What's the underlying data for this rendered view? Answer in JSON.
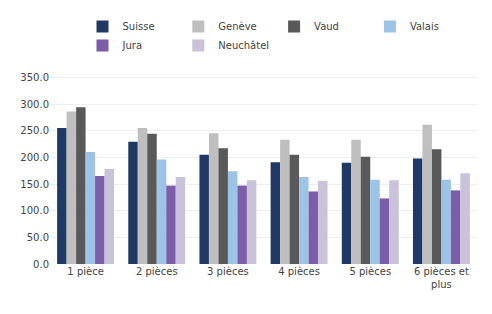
{
  "chart_data": {
    "type": "bar",
    "categories": [
      "1 pièce",
      "2 pièces",
      "3 pièces",
      "4 pièces",
      "5 pièces",
      "6 pièces et\nplus"
    ],
    "series": [
      {
        "name": "Suisse",
        "color": "#1F3864",
        "values": [
          255,
          229,
          205,
          191,
          190,
          198
        ]
      },
      {
        "name": "Genève",
        "color": "#BFBFBF",
        "values": [
          286,
          255,
          245,
          233,
          233,
          261
        ]
      },
      {
        "name": "Vaud",
        "color": "#595959",
        "values": [
          294,
          244,
          217,
          205,
          201,
          215
        ]
      },
      {
        "name": "Valais",
        "color": "#9DC3E6",
        "values": [
          210,
          196,
          174,
          163,
          158,
          158
        ]
      },
      {
        "name": "Jura",
        "color": "#7B5EA7",
        "values": [
          165,
          147,
          147,
          136,
          123,
          138
        ]
      },
      {
        "name": "Neuchâtel",
        "color": "#C9C2D9",
        "values": [
          178,
          163,
          157,
          156,
          157,
          170
        ]
      }
    ],
    "ylim": [
      0,
      375
    ],
    "yticks": [
      {
        "value": 0,
        "label": "0.0"
      },
      {
        "value": 50,
        "label": "50.0"
      },
      {
        "value": 100,
        "label": "100.0"
      },
      {
        "value": 150,
        "label": "150.0"
      },
      {
        "value": 200,
        "label": "200.0"
      },
      {
        "value": 250,
        "label": "250.0"
      },
      {
        "value": 300,
        "label": "300.0"
      },
      {
        "value": 350,
        "label": "350.0"
      }
    ],
    "grid": true,
    "legend": "top"
  }
}
